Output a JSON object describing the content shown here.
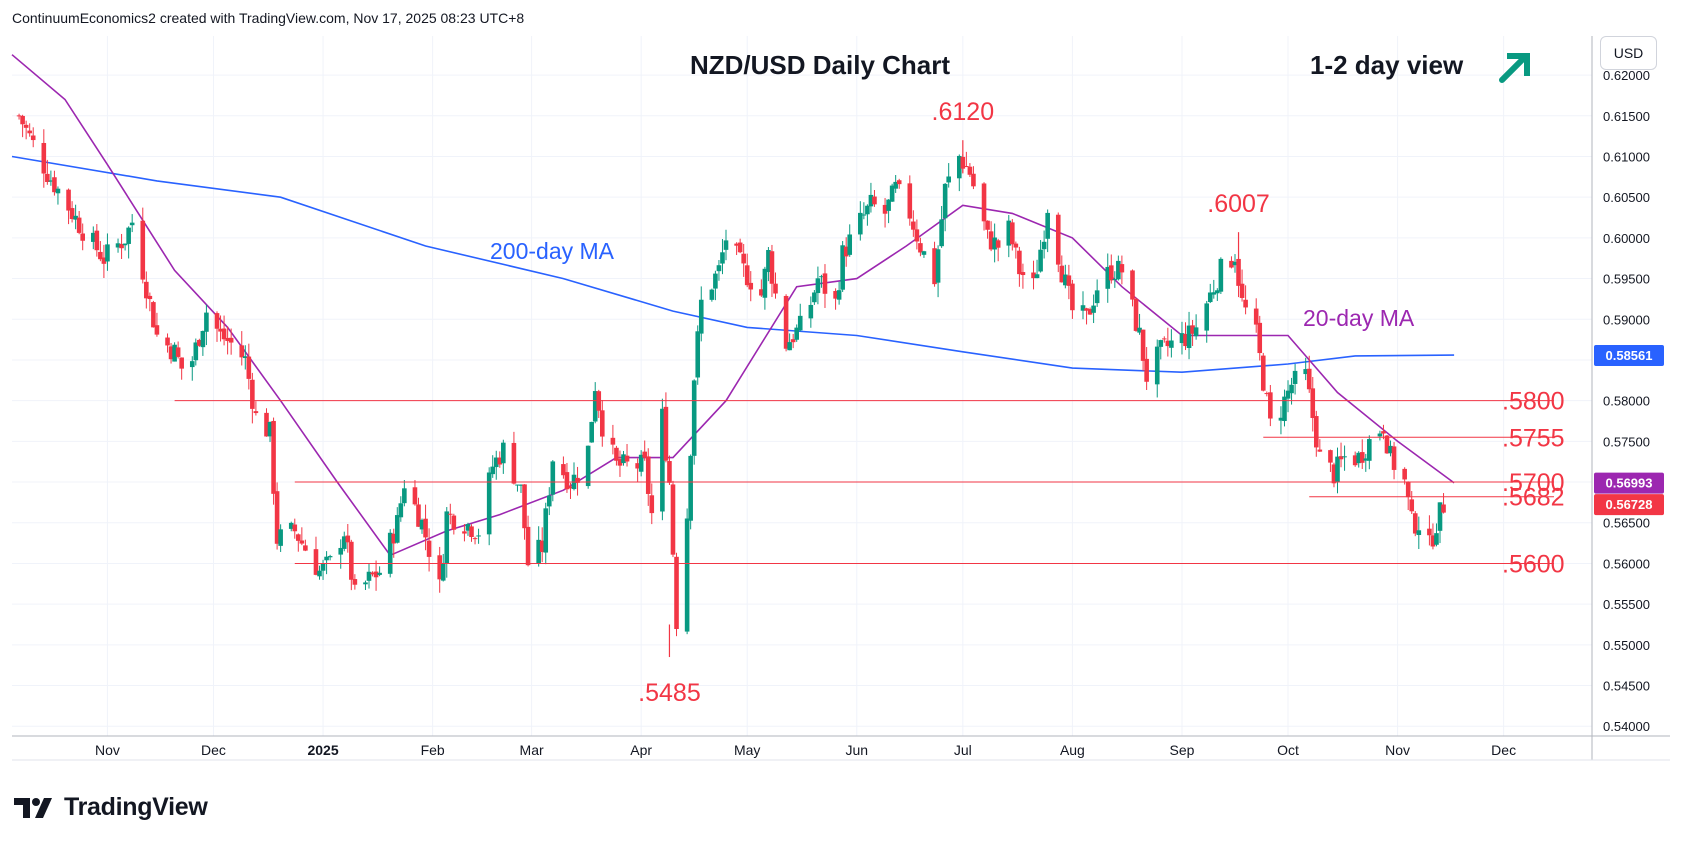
{
  "attribution": "ContinuumEconomics2 created with TradingView.com, Nov 17, 2025 08:23 UTC+8",
  "currency_label": "USD",
  "branding": "TradingView",
  "colors": {
    "up": "#089981",
    "down": "#f23645",
    "ma20": "#9c27b0",
    "ma200": "#2962ff",
    "level_line": "#f23645",
    "annotation": "#f23645",
    "arrow": "#089981"
  },
  "arrow_icon": "arrow-up-right-icon",
  "chart_data": {
    "type": "candlestick",
    "title": "NZD/USD Daily Chart",
    "subtitle": "1-2 day view",
    "ylim": [
      0.5388,
      0.6248
    ],
    "y_ticks": [
      "0.62000",
      "0.61500",
      "0.61000",
      "0.60500",
      "0.60000",
      "0.59500",
      "0.59000",
      "0.58500",
      "0.58000",
      "0.57500",
      "0.57000",
      "0.56500",
      "0.56000",
      "0.55500",
      "0.55000",
      "0.54500",
      "0.54000"
    ],
    "x_ticks": [
      {
        "label": "Nov",
        "date": "2024-11-01",
        "bold": false
      },
      {
        "label": "Dec",
        "date": "2024-12-01",
        "bold": false
      },
      {
        "label": "2025",
        "date": "2025-01-01",
        "bold": true
      },
      {
        "label": "Feb",
        "date": "2025-02-01",
        "bold": false
      },
      {
        "label": "Mar",
        "date": "2025-03-01",
        "bold": false
      },
      {
        "label": "Apr",
        "date": "2025-04-01",
        "bold": false
      },
      {
        "label": "May",
        "date": "2025-05-01",
        "bold": false
      },
      {
        "label": "Jun",
        "date": "2025-06-01",
        "bold": false
      },
      {
        "label": "Jul",
        "date": "2025-07-01",
        "bold": false
      },
      {
        "label": "Aug",
        "date": "2025-08-01",
        "bold": false
      },
      {
        "label": "Sep",
        "date": "2025-09-01",
        "bold": false
      },
      {
        "label": "Oct",
        "date": "2025-10-01",
        "bold": false
      },
      {
        "label": "Nov",
        "date": "2025-11-01",
        "bold": false
      },
      {
        "label": "Dec",
        "date": "2025-12-01",
        "bold": false
      }
    ],
    "x_range": [
      "2024-10-05",
      "2025-12-26"
    ],
    "price_path": [
      [
        "2024-10-07",
        0.615
      ],
      [
        "2024-10-15",
        0.608
      ],
      [
        "2024-10-25",
        0.601
      ],
      [
        "2024-10-31",
        0.5975
      ],
      [
        "2024-11-06",
        0.6
      ],
      [
        "2024-11-08",
        0.602
      ],
      [
        "2024-11-12",
        0.594
      ],
      [
        "2024-11-15",
        0.588
      ],
      [
        "2024-11-20",
        0.586
      ],
      [
        "2024-11-22",
        0.584
      ],
      [
        "2024-11-25",
        0.585
      ],
      [
        "2024-11-29",
        0.591
      ],
      [
        "2024-12-03",
        0.588
      ],
      [
        "2024-12-06",
        0.587
      ],
      [
        "2024-12-10",
        0.585
      ],
      [
        "2024-12-13",
        0.578
      ],
      [
        "2024-12-17",
        0.576
      ],
      [
        "2024-12-19",
        0.563
      ],
      [
        "2024-12-24",
        0.564
      ],
      [
        "2024-12-31",
        0.559
      ],
      [
        "2025-01-03",
        0.56
      ],
      [
        "2025-01-07",
        0.564
      ],
      [
        "2025-01-10",
        0.556
      ],
      [
        "2025-01-14",
        0.558
      ],
      [
        "2025-01-17",
        0.559
      ],
      [
        "2025-01-22",
        0.565
      ],
      [
        "2025-01-24",
        0.57
      ],
      [
        "2025-01-29",
        0.565
      ],
      [
        "2025-02-03",
        0.557
      ],
      [
        "2025-02-05",
        0.566
      ],
      [
        "2025-02-10",
        0.565
      ],
      [
        "2025-02-14",
        0.564
      ],
      [
        "2025-02-18",
        0.572
      ],
      [
        "2025-02-21",
        0.574
      ],
      [
        "2025-02-26",
        0.569
      ],
      [
        "2025-02-28",
        0.56
      ],
      [
        "2025-03-04",
        0.562
      ],
      [
        "2025-03-07",
        0.573
      ],
      [
        "2025-03-12",
        0.57
      ],
      [
        "2025-03-14",
        0.571
      ],
      [
        "2025-03-17",
        0.574
      ],
      [
        "2025-03-19",
        0.582
      ],
      [
        "2025-03-21",
        0.577
      ],
      [
        "2025-03-25",
        0.572
      ],
      [
        "2025-03-28",
        0.572
      ],
      [
        "2025-04-02",
        0.572
      ],
      [
        "2025-04-04",
        0.566
      ],
      [
        "2025-04-07",
        0.578
      ],
      [
        "2025-04-09",
        0.57
      ],
      [
        "2025-04-11",
        0.553
      ],
      [
        "2025-04-14",
        0.566
      ],
      [
        "2025-04-16",
        0.583
      ],
      [
        "2025-04-18",
        0.592
      ],
      [
        "2025-04-23",
        0.596
      ],
      [
        "2025-04-25",
        0.6
      ],
      [
        "2025-04-30",
        0.596
      ],
      [
        "2025-05-05",
        0.593
      ],
      [
        "2025-05-07",
        0.598
      ],
      [
        "2025-05-09",
        0.593
      ],
      [
        "2025-05-12",
        0.587
      ],
      [
        "2025-05-16",
        0.589
      ],
      [
        "2025-05-19",
        0.592
      ],
      [
        "2025-05-21",
        0.595
      ],
      [
        "2025-05-26",
        0.592
      ],
      [
        "2025-05-28",
        0.598
      ],
      [
        "2025-06-02",
        0.602
      ],
      [
        "2025-06-05",
        0.604
      ],
      [
        "2025-06-09",
        0.603
      ],
      [
        "2025-06-12",
        0.606
      ],
      [
        "2025-06-16",
        0.603
      ],
      [
        "2025-06-19",
        0.599
      ],
      [
        "2025-06-23",
        0.595
      ],
      [
        "2025-06-26",
        0.606
      ],
      [
        "2025-06-30",
        0.61
      ],
      [
        "2025-07-03",
        0.608
      ],
      [
        "2025-07-08",
        0.6
      ],
      [
        "2025-07-11",
        0.599
      ],
      [
        "2025-07-14",
        0.601
      ],
      [
        "2025-07-17",
        0.596
      ],
      [
        "2025-07-21",
        0.594
      ],
      [
        "2025-07-24",
        0.601
      ],
      [
        "2025-07-25",
        0.604
      ],
      [
        "2025-07-29",
        0.596
      ],
      [
        "2025-08-01",
        0.591
      ],
      [
        "2025-08-05",
        0.59
      ],
      [
        "2025-08-08",
        0.594
      ],
      [
        "2025-08-12",
        0.596
      ],
      [
        "2025-08-15",
        0.596
      ],
      [
        "2025-08-20",
        0.588
      ],
      [
        "2025-08-22",
        0.583
      ],
      [
        "2025-08-26",
        0.586
      ],
      [
        "2025-08-29",
        0.587
      ],
      [
        "2025-09-03",
        0.588
      ],
      [
        "2025-09-05",
        0.589
      ],
      [
        "2025-09-10",
        0.594
      ],
      [
        "2025-09-12",
        0.596
      ],
      [
        "2025-09-16",
        0.598
      ],
      [
        "2025-09-18",
        0.592
      ],
      [
        "2025-09-22",
        0.588
      ],
      [
        "2025-09-26",
        0.577
      ],
      [
        "2025-09-29",
        0.579
      ],
      [
        "2025-10-02",
        0.582
      ],
      [
        "2025-10-06",
        0.583
      ],
      [
        "2025-10-08",
        0.578
      ],
      [
        "2025-10-10",
        0.573
      ],
      [
        "2025-10-14",
        0.571
      ],
      [
        "2025-10-17",
        0.573
      ],
      [
        "2025-10-21",
        0.573
      ],
      [
        "2025-10-24",
        0.575
      ],
      [
        "2025-10-28",
        0.577
      ],
      [
        "2025-10-30",
        0.573
      ],
      [
        "2025-11-03",
        0.57
      ],
      [
        "2025-11-05",
        0.565
      ],
      [
        "2025-11-07",
        0.565
      ],
      [
        "2025-11-10",
        0.562
      ],
      [
        "2025-11-12",
        0.565
      ],
      [
        "2025-11-14",
        0.5672
      ]
    ],
    "marked_extremes": [
      {
        "label": ".6120",
        "date": "2025-07-01",
        "price": 0.612,
        "kind": "high"
      },
      {
        "label": ".6007",
        "date": "2025-09-17",
        "price": 0.6007,
        "kind": "high"
      },
      {
        "label": ".5485",
        "date": "2025-04-09",
        "price": 0.5485,
        "kind": "low"
      }
    ],
    "levels": [
      {
        "label": ".5800",
        "price": 0.58,
        "from": "2024-11-20"
      },
      {
        "label": ".5755",
        "price": 0.5755,
        "from": "2025-09-24"
      },
      {
        "label": ".5700",
        "price": 0.57,
        "from": "2024-12-24"
      },
      {
        "label": ".5682",
        "price": 0.5682,
        "from": "2025-10-07"
      },
      {
        "label": ".5600",
        "price": 0.56,
        "from": "2024-12-24"
      }
    ],
    "series": [
      {
        "name": "200-day MA",
        "color": "#2962ff",
        "points": [
          [
            "2024-10-05",
            0.61
          ],
          [
            "2024-11-15",
            0.607
          ],
          [
            "2024-12-20",
            0.605
          ],
          [
            "2025-01-30",
            0.599
          ],
          [
            "2025-03-10",
            0.595
          ],
          [
            "2025-04-10",
            0.591
          ],
          [
            "2025-05-01",
            0.589
          ],
          [
            "2025-06-01",
            0.588
          ],
          [
            "2025-07-01",
            0.586
          ],
          [
            "2025-08-01",
            0.584
          ],
          [
            "2025-09-01",
            0.5835
          ],
          [
            "2025-10-01",
            0.5845
          ],
          [
            "2025-10-20",
            0.5855
          ],
          [
            "2025-11-17",
            0.5856
          ]
        ]
      },
      {
        "name": "20-day MA",
        "color": "#9c27b0",
        "points": [
          [
            "2024-10-05",
            0.6225
          ],
          [
            "2024-10-20",
            0.617
          ],
          [
            "2024-11-01",
            0.609
          ],
          [
            "2024-11-20",
            0.596
          ],
          [
            "2024-12-05",
            0.589
          ],
          [
            "2024-12-20",
            0.58
          ],
          [
            "2025-01-05",
            0.57
          ],
          [
            "2025-01-20",
            0.561
          ],
          [
            "2025-02-05",
            0.564
          ],
          [
            "2025-02-20",
            0.566
          ],
          [
            "2025-03-10",
            0.569
          ],
          [
            "2025-03-25",
            0.573
          ],
          [
            "2025-04-10",
            0.573
          ],
          [
            "2025-04-25",
            0.58
          ],
          [
            "2025-05-15",
            0.594
          ],
          [
            "2025-06-01",
            0.595
          ],
          [
            "2025-06-15",
            0.599
          ],
          [
            "2025-07-01",
            0.604
          ],
          [
            "2025-07-15",
            0.603
          ],
          [
            "2025-08-01",
            0.6
          ],
          [
            "2025-08-15",
            0.594
          ],
          [
            "2025-09-01",
            0.588
          ],
          [
            "2025-09-15",
            0.588
          ],
          [
            "2025-10-01",
            0.588
          ],
          [
            "2025-10-15",
            0.581
          ],
          [
            "2025-11-01",
            0.575
          ],
          [
            "2025-11-17",
            0.5699
          ]
        ]
      }
    ],
    "price_labels": [
      {
        "text": "0.58561",
        "price": 0.58561,
        "color": "#2962ff"
      },
      {
        "text": "0.56993",
        "price": 0.56993,
        "color": "#9c27b0"
      },
      {
        "text": "0.56728",
        "price": 0.56728,
        "color": "#f23645"
      }
    ]
  }
}
